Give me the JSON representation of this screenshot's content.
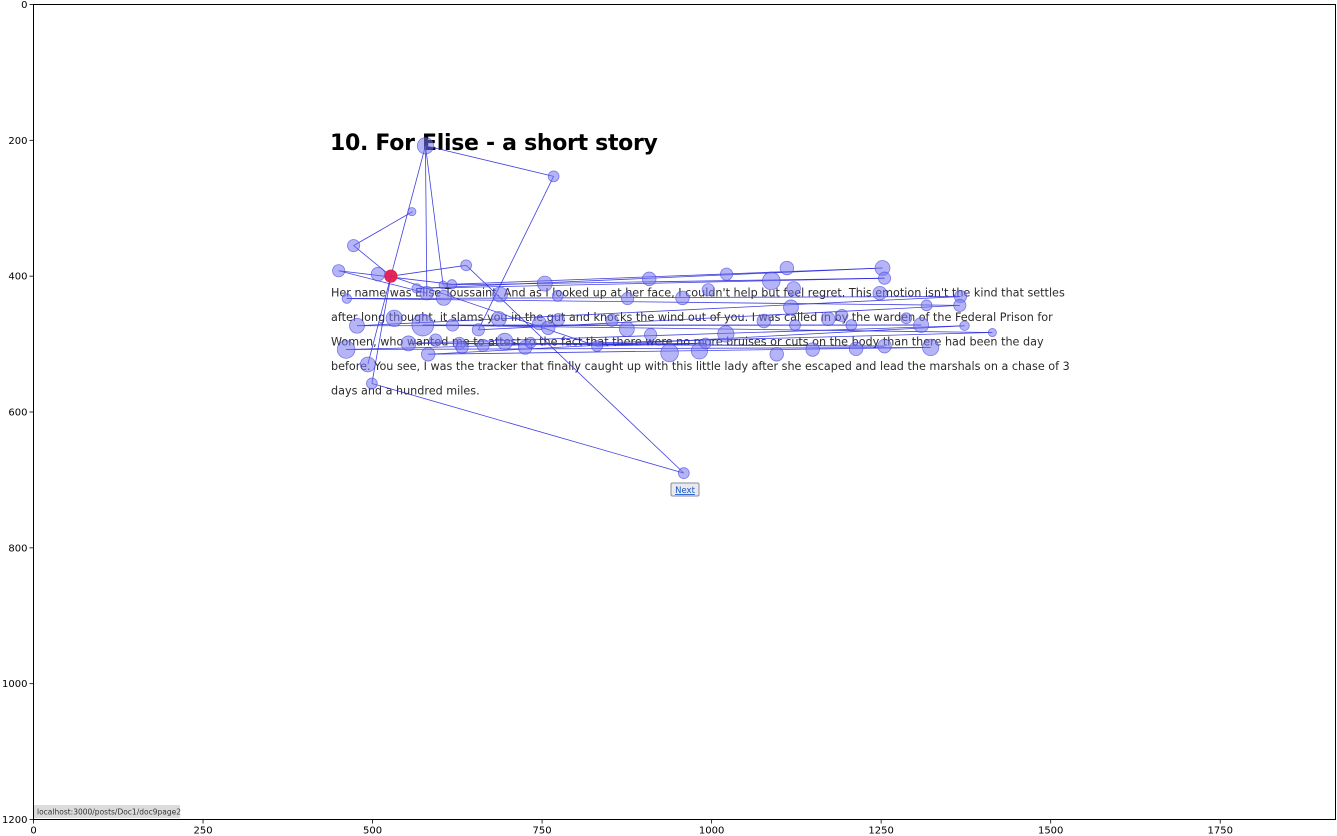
{
  "page": {
    "title": "10. For Elise - a short story",
    "paragraph_lines": [
      "Her name was Elise Toussaint. And as I looked up at her face, I couldn't help but feel regret. This emotion isn't the kind that settles",
      "after long thought, it slams you in the gut and knocks the wind out of you. I was called in by the warden of the Federal Prison for",
      "Women, who wanted me to attest to the fact that there were no more bruises or cuts on the body than there had been the day",
      "before. You see, I was the tracker that finally caught up with this little lady after she escaped and lead the marshals on a chase of 3",
      "days and a hundred miles."
    ],
    "next_button_label": "Next",
    "status_bar_url": "localhost:3000/posts/Doc1/doc9page2"
  },
  "colors": {
    "fixation_fill": "#7777ee",
    "fixation_stroke": "#3a3ae0",
    "scanpath_line": "#2b2bdd",
    "highlight_fixation": "#e8184a"
  },
  "chart_data": {
    "type": "scatter",
    "title": "",
    "xlabel": "",
    "ylabel": "",
    "xlim": [
      0,
      1920
    ],
    "ylim": [
      1200,
      0
    ],
    "x_ticks": [
      0,
      250,
      500,
      750,
      1000,
      1250,
      1500,
      1750
    ],
    "y_ticks": [
      0,
      200,
      400,
      600,
      800,
      1000,
      1200
    ],
    "grid": false,
    "legend": "none",
    "fixations": [
      {
        "x": 578,
        "y": 208,
        "r": 12
      },
      {
        "x": 767,
        "y": 253,
        "r": 8
      },
      {
        "x": 558,
        "y": 305,
        "r": 6
      },
      {
        "x": 472,
        "y": 355,
        "r": 9
      },
      {
        "x": 450,
        "y": 392,
        "r": 9
      },
      {
        "x": 508,
        "y": 397,
        "r": 10
      },
      {
        "x": 527,
        "y": 400,
        "r": 9
      },
      {
        "x": 638,
        "y": 384,
        "r": 8
      },
      {
        "x": 565,
        "y": 418,
        "r": 7
      },
      {
        "x": 580,
        "y": 425,
        "r": 10
      },
      {
        "x": 604,
        "y": 413,
        "r": 6
      },
      {
        "x": 617,
        "y": 412,
        "r": 7
      },
      {
        "x": 605,
        "y": 432,
        "r": 11
      },
      {
        "x": 688,
        "y": 427,
        "r": 11
      },
      {
        "x": 754,
        "y": 411,
        "r": 11
      },
      {
        "x": 773,
        "y": 429,
        "r": 8
      },
      {
        "x": 876,
        "y": 433,
        "r": 9
      },
      {
        "x": 908,
        "y": 404,
        "r": 10
      },
      {
        "x": 957,
        "y": 432,
        "r": 10
      },
      {
        "x": 995,
        "y": 420,
        "r": 9
      },
      {
        "x": 1022,
        "y": 397,
        "r": 9
      },
      {
        "x": 1088,
        "y": 407,
        "r": 13
      },
      {
        "x": 1111,
        "y": 388,
        "r": 10
      },
      {
        "x": 1121,
        "y": 418,
        "r": 10
      },
      {
        "x": 1117,
        "y": 446,
        "r": 11
      },
      {
        "x": 1252,
        "y": 388,
        "r": 11
      },
      {
        "x": 1255,
        "y": 403,
        "r": 9
      },
      {
        "x": 1248,
        "y": 425,
        "r": 10
      },
      {
        "x": 1317,
        "y": 443,
        "r": 8
      },
      {
        "x": 1367,
        "y": 430,
        "r": 9
      },
      {
        "x": 1366,
        "y": 443,
        "r": 9
      },
      {
        "x": 1414,
        "y": 483,
        "r": 6
      },
      {
        "x": 1373,
        "y": 473,
        "r": 7
      },
      {
        "x": 462,
        "y": 433,
        "r": 7
      },
      {
        "x": 477,
        "y": 473,
        "r": 11
      },
      {
        "x": 532,
        "y": 462,
        "r": 12
      },
      {
        "x": 574,
        "y": 472,
        "r": 16
      },
      {
        "x": 618,
        "y": 472,
        "r": 9
      },
      {
        "x": 656,
        "y": 479,
        "r": 9
      },
      {
        "x": 686,
        "y": 463,
        "r": 11
      },
      {
        "x": 746,
        "y": 469,
        "r": 10
      },
      {
        "x": 759,
        "y": 476,
        "r": 10
      },
      {
        "x": 774,
        "y": 464,
        "r": 9
      },
      {
        "x": 853,
        "y": 465,
        "r": 9
      },
      {
        "x": 875,
        "y": 478,
        "r": 11
      },
      {
        "x": 910,
        "y": 486,
        "r": 9
      },
      {
        "x": 1021,
        "y": 485,
        "r": 12
      },
      {
        "x": 1077,
        "y": 466,
        "r": 10
      },
      {
        "x": 1123,
        "y": 472,
        "r": 8
      },
      {
        "x": 1172,
        "y": 463,
        "r": 10
      },
      {
        "x": 1192,
        "y": 458,
        "r": 9
      },
      {
        "x": 1206,
        "y": 472,
        "r": 8
      },
      {
        "x": 1287,
        "y": 462,
        "r": 8
      },
      {
        "x": 1309,
        "y": 472,
        "r": 11
      },
      {
        "x": 461,
        "y": 508,
        "r": 13
      },
      {
        "x": 493,
        "y": 530,
        "r": 11
      },
      {
        "x": 553,
        "y": 499,
        "r": 11
      },
      {
        "x": 593,
        "y": 494,
        "r": 9
      },
      {
        "x": 582,
        "y": 515,
        "r": 10
      },
      {
        "x": 628,
        "y": 499,
        "r": 9
      },
      {
        "x": 632,
        "y": 505,
        "r": 9
      },
      {
        "x": 663,
        "y": 502,
        "r": 9
      },
      {
        "x": 695,
        "y": 496,
        "r": 12
      },
      {
        "x": 725,
        "y": 505,
        "r": 10
      },
      {
        "x": 733,
        "y": 498,
        "r": 8
      },
      {
        "x": 831,
        "y": 503,
        "r": 8
      },
      {
        "x": 938,
        "y": 513,
        "r": 13
      },
      {
        "x": 982,
        "y": 510,
        "r": 12
      },
      {
        "x": 991,
        "y": 499,
        "r": 8
      },
      {
        "x": 1096,
        "y": 515,
        "r": 10
      },
      {
        "x": 1149,
        "y": 508,
        "r": 10
      },
      {
        "x": 1213,
        "y": 507,
        "r": 10
      },
      {
        "x": 1255,
        "y": 503,
        "r": 10
      },
      {
        "x": 1323,
        "y": 505,
        "r": 12
      },
      {
        "x": 499,
        "y": 558,
        "r": 8
      },
      {
        "x": 959,
        "y": 690,
        "r": 8
      }
    ],
    "scanpath": [
      [
        559,
        305
      ],
      [
        472,
        355
      ],
      [
        527,
        400
      ],
      [
        638,
        384
      ],
      [
        959,
        690
      ],
      [
        499,
        558
      ],
      [
        527,
        400
      ],
      [
        578,
        208
      ],
      [
        580,
        425
      ],
      [
        450,
        392
      ],
      [
        617,
        412
      ],
      [
        1252,
        388
      ],
      [
        565,
        418
      ],
      [
        1255,
        403
      ],
      [
        604,
        413
      ],
      [
        578,
        208
      ],
      [
        767,
        253
      ],
      [
        656,
        479
      ],
      [
        1366,
        443
      ],
      [
        462,
        433
      ],
      [
        1367,
        430
      ],
      [
        477,
        473
      ],
      [
        1309,
        472
      ],
      [
        574,
        472
      ],
      [
        1414,
        483
      ],
      [
        461,
        508
      ],
      [
        1323,
        505
      ],
      [
        582,
        515
      ],
      [
        1373,
        473
      ],
      [
        553,
        499
      ],
      [
        1255,
        503
      ],
      [
        628,
        499
      ],
      [
        991,
        499
      ],
      [
        831,
        503
      ],
      [
        527,
        400
      ],
      [
        493,
        530
      ]
    ],
    "highlight": {
      "x": 527,
      "y": 400,
      "r": 9
    }
  }
}
